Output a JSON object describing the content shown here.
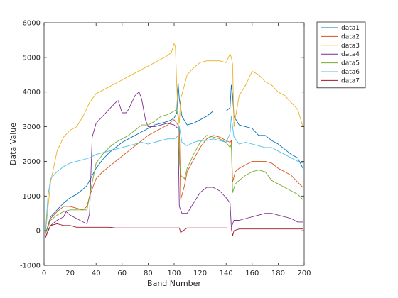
{
  "chart_data": {
    "type": "line",
    "title": "",
    "xlabel": "Band Number",
    "ylabel": "Data Value",
    "xlim": [
      0,
      200
    ],
    "ylim": [
      -1000,
      6000
    ],
    "xticks": [
      0,
      20,
      40,
      60,
      80,
      100,
      120,
      140,
      160,
      180,
      200
    ],
    "yticks": [
      -1000,
      0,
      1000,
      2000,
      3000,
      4000,
      5000,
      6000
    ],
    "grid": false,
    "legend_position": "outside-top-right",
    "series": [
      {
        "name": "data1",
        "color": "#0072BD",
        "x": [
          1,
          5,
          10,
          15,
          20,
          25,
          30,
          33,
          35,
          40,
          45,
          50,
          55,
          60,
          65,
          70,
          75,
          80,
          85,
          90,
          95,
          98,
          100,
          102,
          103,
          104,
          106,
          110,
          115,
          120,
          125,
          130,
          135,
          140,
          143,
          144,
          145,
          146,
          150,
          155,
          160,
          165,
          170,
          175,
          180,
          185,
          190,
          195,
          199
        ],
        "y": [
          -100,
          400,
          600,
          800,
          950,
          1050,
          1200,
          1300,
          1450,
          1800,
          2050,
          2250,
          2400,
          2550,
          2650,
          2750,
          2850,
          2950,
          3050,
          3100,
          3150,
          3200,
          3250,
          3400,
          4300,
          3800,
          3300,
          3050,
          3100,
          3200,
          3300,
          3450,
          3450,
          3450,
          3550,
          4200,
          3900,
          3300,
          3050,
          3000,
          2950,
          2750,
          2750,
          2600,
          2500,
          2350,
          2200,
          2100,
          1800
        ]
      },
      {
        "name": "data2",
        "color": "#D95319",
        "x": [
          1,
          5,
          10,
          15,
          20,
          25,
          30,
          33,
          35,
          40,
          45,
          50,
          55,
          60,
          65,
          70,
          75,
          80,
          85,
          90,
          95,
          98,
          100,
          102,
          104,
          105,
          108,
          110,
          115,
          120,
          125,
          130,
          135,
          140,
          143,
          144,
          145,
          147,
          150,
          155,
          160,
          165,
          170,
          175,
          180,
          185,
          190,
          195,
          199
        ],
        "y": [
          -100,
          350,
          550,
          700,
          700,
          650,
          600,
          700,
          1000,
          1500,
          1700,
          1850,
          2000,
          2150,
          2300,
          2450,
          2600,
          2750,
          2850,
          2950,
          3050,
          3150,
          3200,
          3100,
          3000,
          900,
          1300,
          1700,
          2050,
          2400,
          2650,
          2750,
          2700,
          2600,
          2550,
          2600,
          1400,
          1700,
          1800,
          1900,
          2000,
          2000,
          2000,
          1950,
          1800,
          1700,
          1600,
          1400,
          1250
        ]
      },
      {
        "name": "data3",
        "color": "#EDB120",
        "x": [
          1,
          5,
          10,
          15,
          20,
          25,
          30,
          35,
          40,
          45,
          50,
          55,
          60,
          65,
          70,
          75,
          80,
          85,
          90,
          95,
          98,
          100,
          101,
          102,
          103,
          104,
          105,
          108,
          110,
          115,
          120,
          125,
          130,
          135,
          140,
          143,
          144,
          145,
          146,
          150,
          155,
          160,
          165,
          170,
          175,
          180,
          185,
          190,
          195,
          199
        ],
        "y": [
          -100,
          1400,
          2300,
          2700,
          2900,
          3000,
          3300,
          3700,
          3950,
          4050,
          4150,
          4250,
          4350,
          4450,
          4550,
          4650,
          4750,
          4850,
          4950,
          5050,
          5150,
          5400,
          5300,
          4200,
          3400,
          3100,
          3800,
          4200,
          4500,
          4700,
          4850,
          4900,
          4900,
          4900,
          4850,
          5100,
          5000,
          4800,
          3000,
          3900,
          4200,
          4600,
          4500,
          4300,
          4200,
          4000,
          3900,
          3700,
          3500,
          3000
        ]
      },
      {
        "name": "data4",
        "color": "#7E2F8E",
        "x": [
          1,
          5,
          10,
          15,
          17,
          20,
          25,
          30,
          33,
          35,
          37,
          40,
          45,
          50,
          55,
          57,
          60,
          63,
          65,
          70,
          73,
          75,
          78,
          80,
          85,
          90,
          95,
          100,
          103,
          104,
          106,
          110,
          115,
          120,
          125,
          130,
          135,
          140,
          143,
          144,
          146,
          150,
          155,
          160,
          165,
          170,
          175,
          180,
          185,
          190,
          195,
          199
        ],
        "y": [
          -200,
          150,
          300,
          400,
          550,
          450,
          350,
          250,
          200,
          500,
          2700,
          3100,
          3300,
          3500,
          3700,
          3750,
          3400,
          3400,
          3500,
          3900,
          4000,
          3800,
          3200,
          3000,
          3000,
          3050,
          3100,
          3050,
          2950,
          700,
          500,
          500,
          800,
          1100,
          1250,
          1250,
          1150,
          950,
          800,
          100,
          300,
          300,
          350,
          400,
          450,
          500,
          500,
          450,
          400,
          350,
          250,
          250
        ]
      },
      {
        "name": "data5",
        "color": "#77AC30",
        "x": [
          1,
          5,
          10,
          15,
          20,
          25,
          30,
          33,
          35,
          40,
          45,
          50,
          55,
          60,
          65,
          70,
          75,
          80,
          85,
          90,
          95,
          100,
          102,
          103,
          104,
          105,
          108,
          110,
          115,
          120,
          125,
          130,
          135,
          140,
          143,
          144,
          145,
          147,
          150,
          155,
          160,
          165,
          170,
          175,
          180,
          185,
          190,
          195,
          199
        ],
        "y": [
          -100,
          300,
          450,
          550,
          600,
          600,
          600,
          600,
          1000,
          1950,
          2200,
          2400,
          2550,
          2650,
          2750,
          2900,
          3050,
          3050,
          3150,
          3300,
          3350,
          3450,
          3500,
          3300,
          2000,
          1600,
          1500,
          1800,
          2200,
          2550,
          2750,
          2700,
          2650,
          2550,
          2400,
          2500,
          1100,
          1350,
          1450,
          1600,
          1700,
          1750,
          1700,
          1450,
          1350,
          1250,
          1150,
          1050,
          900
        ]
      },
      {
        "name": "data6",
        "color": "#4DBEEE",
        "x": [
          1,
          3,
          5,
          10,
          15,
          20,
          25,
          30,
          35,
          40,
          45,
          50,
          55,
          60,
          65,
          70,
          75,
          80,
          85,
          90,
          95,
          100,
          102,
          103,
          104,
          106,
          110,
          115,
          120,
          125,
          130,
          135,
          140,
          143,
          144,
          145,
          146,
          150,
          155,
          160,
          165,
          170,
          175,
          180,
          185,
          190,
          195,
          199
        ],
        "y": [
          -100,
          1000,
          1500,
          1700,
          1850,
          1950,
          2000,
          2050,
          2100,
          2200,
          2250,
          2300,
          2350,
          2400,
          2450,
          2500,
          2550,
          2500,
          2550,
          2600,
          2650,
          2650,
          2700,
          2750,
          3000,
          2550,
          2450,
          2550,
          2600,
          2600,
          2650,
          2600,
          2550,
          2800,
          3300,
          3000,
          2700,
          2500,
          2550,
          2500,
          2450,
          2400,
          2400,
          2300,
          2200,
          2100,
          2000,
          1950
        ]
      },
      {
        "name": "data7",
        "color": "#A2142F",
        "x": [
          1,
          3,
          5,
          10,
          15,
          20,
          25,
          30,
          35,
          40,
          45,
          50,
          55,
          60,
          65,
          70,
          75,
          80,
          85,
          90,
          95,
          100,
          104,
          105,
          110,
          115,
          120,
          125,
          130,
          135,
          140,
          144,
          145,
          146,
          150,
          155,
          160,
          165,
          170,
          175,
          180,
          185,
          190,
          195,
          199
        ],
        "y": [
          -200,
          0,
          150,
          200,
          150,
          150,
          100,
          100,
          100,
          100,
          100,
          100,
          80,
          80,
          80,
          80,
          80,
          80,
          80,
          80,
          80,
          80,
          80,
          -50,
          80,
          80,
          80,
          80,
          80,
          80,
          80,
          70,
          -150,
          0,
          50,
          50,
          50,
          50,
          50,
          50,
          50,
          50,
          50,
          50,
          50
        ]
      }
    ]
  }
}
